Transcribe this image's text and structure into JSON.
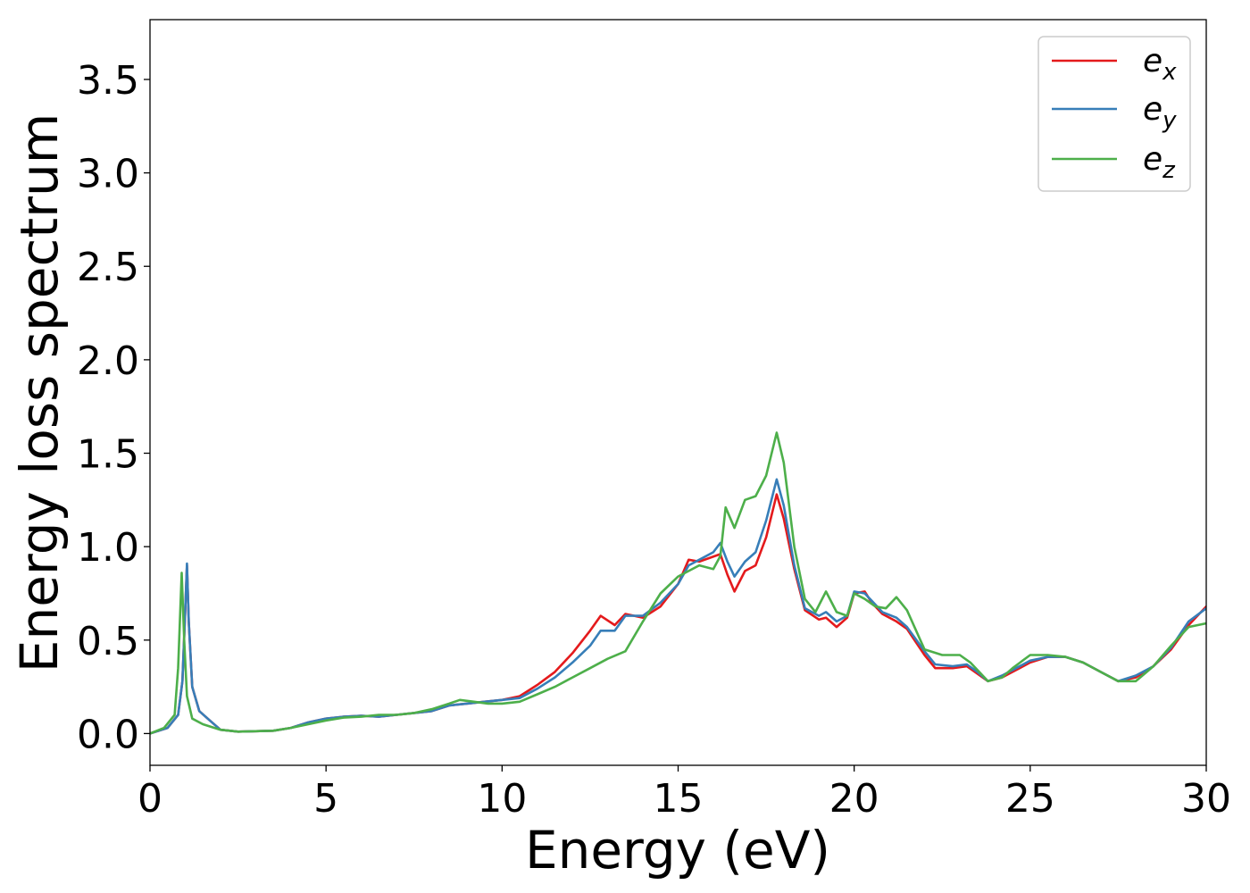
{
  "chart_data": {
    "type": "line",
    "title": "",
    "xlabel": "Energy (eV)",
    "ylabel": "Energy loss spectrum",
    "xlim": [
      0,
      30
    ],
    "ylim": [
      -0.17,
      3.82
    ],
    "xticks": [
      0,
      5,
      10,
      15,
      20,
      25,
      30
    ],
    "yticks": [
      0.0,
      0.5,
      1.0,
      1.5,
      2.0,
      2.5,
      3.0,
      3.5
    ],
    "xtick_labels": [
      "0",
      "5",
      "10",
      "15",
      "20",
      "25",
      "30"
    ],
    "ytick_labels": [
      "0.0",
      "0.5",
      "1.0",
      "1.5",
      "2.0",
      "2.5",
      "3.0",
      "3.5"
    ],
    "grid": false,
    "legend_position": "top-right",
    "series": [
      {
        "name": "e_x",
        "label_base": "e",
        "label_sub": "x",
        "color": "#e41a1c",
        "points": [
          [
            0,
            0.0
          ],
          [
            0.5,
            0.03
          ],
          [
            0.8,
            0.1
          ],
          [
            0.92,
            0.28
          ],
          [
            1.0,
            0.65
          ],
          [
            1.05,
            0.9
          ],
          [
            1.1,
            0.6
          ],
          [
            1.2,
            0.25
          ],
          [
            1.4,
            0.12
          ],
          [
            1.7,
            0.07
          ],
          [
            2.0,
            0.02
          ],
          [
            2.5,
            0.01
          ],
          [
            3.5,
            0.015
          ],
          [
            4.0,
            0.03
          ],
          [
            4.5,
            0.06
          ],
          [
            5.0,
            0.08
          ],
          [
            5.5,
            0.09
          ],
          [
            6.0,
            0.095
          ],
          [
            6.5,
            0.09
          ],
          [
            7.0,
            0.1
          ],
          [
            7.5,
            0.11
          ],
          [
            8.0,
            0.12
          ],
          [
            8.5,
            0.15
          ],
          [
            9.0,
            0.16
          ],
          [
            9.5,
            0.17
          ],
          [
            10.0,
            0.18
          ],
          [
            10.5,
            0.2
          ],
          [
            11.0,
            0.26
          ],
          [
            11.5,
            0.33
          ],
          [
            12.0,
            0.43
          ],
          [
            12.5,
            0.55
          ],
          [
            12.8,
            0.63
          ],
          [
            13.2,
            0.58
          ],
          [
            13.5,
            0.64
          ],
          [
            14.0,
            0.62
          ],
          [
            14.5,
            0.68
          ],
          [
            15.0,
            0.8
          ],
          [
            15.3,
            0.93
          ],
          [
            15.6,
            0.92
          ],
          [
            16.2,
            0.96
          ],
          [
            16.4,
            0.85
          ],
          [
            16.6,
            0.76
          ],
          [
            16.9,
            0.87
          ],
          [
            17.2,
            0.9
          ],
          [
            17.5,
            1.05
          ],
          [
            17.8,
            1.28
          ],
          [
            18.0,
            1.15
          ],
          [
            18.3,
            0.88
          ],
          [
            18.6,
            0.66
          ],
          [
            19.0,
            0.61
          ],
          [
            19.2,
            0.62
          ],
          [
            19.5,
            0.57
          ],
          [
            19.8,
            0.62
          ],
          [
            20.0,
            0.75
          ],
          [
            20.3,
            0.76
          ],
          [
            20.5,
            0.7
          ],
          [
            20.8,
            0.64
          ],
          [
            21.2,
            0.6
          ],
          [
            21.5,
            0.56
          ],
          [
            22.0,
            0.42
          ],
          [
            22.3,
            0.35
          ],
          [
            22.8,
            0.35
          ],
          [
            23.2,
            0.36
          ],
          [
            23.5,
            0.32
          ],
          [
            23.8,
            0.28
          ],
          [
            24.2,
            0.3
          ],
          [
            24.5,
            0.33
          ],
          [
            25.0,
            0.38
          ],
          [
            25.5,
            0.41
          ],
          [
            26.0,
            0.41
          ],
          [
            26.5,
            0.38
          ],
          [
            27.0,
            0.33
          ],
          [
            27.5,
            0.28
          ],
          [
            28.0,
            0.3
          ],
          [
            28.5,
            0.36
          ],
          [
            29.0,
            0.45
          ],
          [
            29.5,
            0.58
          ],
          [
            30.0,
            0.68
          ]
        ]
      },
      {
        "name": "e_y",
        "label_base": "e",
        "label_sub": "y",
        "color": "#377eb8",
        "points": [
          [
            0,
            0.0
          ],
          [
            0.5,
            0.03
          ],
          [
            0.8,
            0.1
          ],
          [
            0.92,
            0.28
          ],
          [
            1.0,
            0.65
          ],
          [
            1.05,
            0.91
          ],
          [
            1.1,
            0.6
          ],
          [
            1.2,
            0.25
          ],
          [
            1.4,
            0.12
          ],
          [
            1.7,
            0.07
          ],
          [
            2.0,
            0.02
          ],
          [
            2.5,
            0.01
          ],
          [
            3.5,
            0.015
          ],
          [
            4.0,
            0.03
          ],
          [
            4.5,
            0.06
          ],
          [
            5.0,
            0.08
          ],
          [
            5.5,
            0.09
          ],
          [
            6.0,
            0.095
          ],
          [
            6.5,
            0.09
          ],
          [
            7.0,
            0.1
          ],
          [
            7.5,
            0.11
          ],
          [
            8.0,
            0.12
          ],
          [
            8.5,
            0.15
          ],
          [
            9.0,
            0.16
          ],
          [
            9.5,
            0.17
          ],
          [
            10.0,
            0.18
          ],
          [
            10.5,
            0.19
          ],
          [
            11.0,
            0.24
          ],
          [
            11.5,
            0.3
          ],
          [
            12.0,
            0.38
          ],
          [
            12.5,
            0.47
          ],
          [
            12.8,
            0.55
          ],
          [
            13.2,
            0.55
          ],
          [
            13.5,
            0.63
          ],
          [
            14.0,
            0.63
          ],
          [
            14.5,
            0.7
          ],
          [
            15.0,
            0.8
          ],
          [
            15.3,
            0.9
          ],
          [
            15.6,
            0.93
          ],
          [
            16.0,
            0.97
          ],
          [
            16.2,
            1.02
          ],
          [
            16.4,
            0.92
          ],
          [
            16.6,
            0.84
          ],
          [
            16.9,
            0.92
          ],
          [
            17.2,
            0.97
          ],
          [
            17.5,
            1.14
          ],
          [
            17.8,
            1.36
          ],
          [
            18.0,
            1.22
          ],
          [
            18.3,
            0.9
          ],
          [
            18.6,
            0.67
          ],
          [
            19.0,
            0.63
          ],
          [
            19.2,
            0.65
          ],
          [
            19.5,
            0.6
          ],
          [
            19.8,
            0.63
          ],
          [
            20.0,
            0.76
          ],
          [
            20.3,
            0.75
          ],
          [
            20.5,
            0.71
          ],
          [
            20.8,
            0.65
          ],
          [
            21.2,
            0.62
          ],
          [
            21.5,
            0.57
          ],
          [
            22.0,
            0.44
          ],
          [
            22.3,
            0.37
          ],
          [
            22.8,
            0.36
          ],
          [
            23.2,
            0.37
          ],
          [
            23.5,
            0.33
          ],
          [
            23.8,
            0.28
          ],
          [
            24.2,
            0.31
          ],
          [
            24.5,
            0.34
          ],
          [
            25.0,
            0.39
          ],
          [
            25.5,
            0.41
          ],
          [
            26.0,
            0.41
          ],
          [
            26.5,
            0.38
          ],
          [
            27.0,
            0.33
          ],
          [
            27.5,
            0.28
          ],
          [
            28.0,
            0.31
          ],
          [
            28.5,
            0.36
          ],
          [
            29.0,
            0.46
          ],
          [
            29.5,
            0.6
          ],
          [
            30.0,
            0.67
          ]
        ]
      },
      {
        "name": "e_z",
        "label_base": "e",
        "label_sub": "z",
        "color": "#4daf4a",
        "points": [
          [
            0,
            0.0
          ],
          [
            0.4,
            0.03
          ],
          [
            0.7,
            0.1
          ],
          [
            0.8,
            0.35
          ],
          [
            0.9,
            0.86
          ],
          [
            0.97,
            0.5
          ],
          [
            1.05,
            0.2
          ],
          [
            1.2,
            0.08
          ],
          [
            1.5,
            0.05
          ],
          [
            2.0,
            0.02
          ],
          [
            2.5,
            0.01
          ],
          [
            3.5,
            0.015
          ],
          [
            4.0,
            0.03
          ],
          [
            4.5,
            0.05
          ],
          [
            5.0,
            0.07
          ],
          [
            5.5,
            0.085
          ],
          [
            6.0,
            0.09
          ],
          [
            6.5,
            0.1
          ],
          [
            7.0,
            0.1
          ],
          [
            7.5,
            0.11
          ],
          [
            8.0,
            0.13
          ],
          [
            8.5,
            0.16
          ],
          [
            8.8,
            0.18
          ],
          [
            9.2,
            0.17
          ],
          [
            9.6,
            0.16
          ],
          [
            10.0,
            0.16
          ],
          [
            10.5,
            0.17
          ],
          [
            11.0,
            0.21
          ],
          [
            11.5,
            0.25
          ],
          [
            12.0,
            0.3
          ],
          [
            12.5,
            0.35
          ],
          [
            13.0,
            0.4
          ],
          [
            13.5,
            0.44
          ],
          [
            14.0,
            0.6
          ],
          [
            14.5,
            0.75
          ],
          [
            15.0,
            0.84
          ],
          [
            15.3,
            0.87
          ],
          [
            15.6,
            0.9
          ],
          [
            16.0,
            0.88
          ],
          [
            16.2,
            0.95
          ],
          [
            16.35,
            1.21
          ],
          [
            16.6,
            1.1
          ],
          [
            16.9,
            1.25
          ],
          [
            17.2,
            1.27
          ],
          [
            17.5,
            1.38
          ],
          [
            17.8,
            1.61
          ],
          [
            18.0,
            1.45
          ],
          [
            18.3,
            1.0
          ],
          [
            18.6,
            0.72
          ],
          [
            18.9,
            0.65
          ],
          [
            19.2,
            0.76
          ],
          [
            19.5,
            0.65
          ],
          [
            19.8,
            0.63
          ],
          [
            20.0,
            0.75
          ],
          [
            20.3,
            0.72
          ],
          [
            20.6,
            0.68
          ],
          [
            20.9,
            0.67
          ],
          [
            21.2,
            0.73
          ],
          [
            21.5,
            0.66
          ],
          [
            22.0,
            0.45
          ],
          [
            22.5,
            0.42
          ],
          [
            23.0,
            0.42
          ],
          [
            23.3,
            0.38
          ],
          [
            23.8,
            0.28
          ],
          [
            24.2,
            0.3
          ],
          [
            24.5,
            0.35
          ],
          [
            25.0,
            0.42
          ],
          [
            25.5,
            0.42
          ],
          [
            26.0,
            0.41
          ],
          [
            26.5,
            0.38
          ],
          [
            27.0,
            0.33
          ],
          [
            27.5,
            0.28
          ],
          [
            28.0,
            0.28
          ],
          [
            28.5,
            0.36
          ],
          [
            29.0,
            0.47
          ],
          [
            29.5,
            0.57
          ],
          [
            30.0,
            0.59
          ]
        ]
      }
    ]
  }
}
